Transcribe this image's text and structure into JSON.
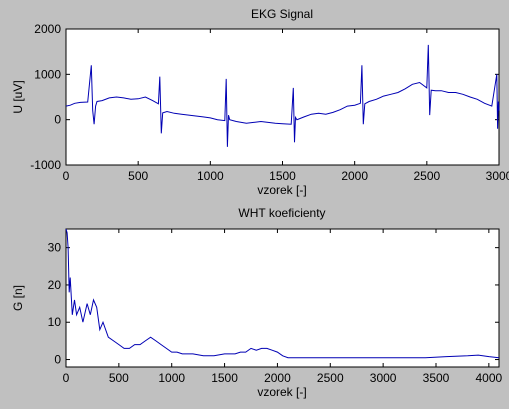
{
  "figure": {
    "background": "#c0c0c0",
    "line_color": "#0000b4"
  },
  "chart_data": [
    {
      "type": "line",
      "title": "EKG Signal",
      "xlabel": "vzorek [-]",
      "ylabel": "U [uV]",
      "xlim": [
        0,
        3000
      ],
      "ylim": [
        -1000,
        2000
      ],
      "xticks": [
        0,
        500,
        1000,
        1500,
        2000,
        2500,
        3000
      ],
      "yticks": [
        -1000,
        0,
        1000,
        2000
      ],
      "grid": false,
      "series": [
        {
          "color": "#0000b4",
          "x": [
            0,
            30,
            60,
            100,
            150,
            175,
            185,
            195,
            205,
            215,
            250,
            300,
            350,
            400,
            450,
            500,
            550,
            600,
            640,
            650,
            660,
            670,
            700,
            750,
            800,
            850,
            900,
            950,
            1000,
            1050,
            1100,
            1110,
            1118,
            1126,
            1134,
            1180,
            1250,
            1300,
            1350,
            1400,
            1450,
            1500,
            1560,
            1575,
            1583,
            1590,
            1600,
            1650,
            1700,
            1750,
            1800,
            1850,
            1900,
            1950,
            2000,
            2040,
            2050,
            2060,
            2070,
            2100,
            2150,
            2200,
            2250,
            2300,
            2350,
            2400,
            2450,
            2500,
            2510,
            2520,
            2530,
            2560,
            2600,
            2650,
            2700,
            2750,
            2800,
            2850,
            2900,
            2950,
            2985,
            2990,
            2996,
            3000
          ],
          "y": [
            300,
            320,
            360,
            380,
            390,
            1200,
            200,
            -100,
            300,
            400,
            420,
            480,
            500,
            480,
            450,
            460,
            500,
            420,
            350,
            950,
            -300,
            150,
            180,
            140,
            120,
            100,
            80,
            60,
            40,
            0,
            -20,
            900,
            -600,
            100,
            0,
            -40,
            -80,
            -60,
            -40,
            -60,
            -80,
            -90,
            -100,
            700,
            -500,
            50,
            0,
            60,
            120,
            140,
            120,
            160,
            220,
            300,
            320,
            360,
            1200,
            -100,
            350,
            400,
            450,
            520,
            560,
            600,
            680,
            780,
            820,
            700,
            1650,
            100,
            650,
            640,
            640,
            600,
            600,
            560,
            500,
            450,
            360,
            300,
            1000,
            -200,
            400,
            200
          ]
        }
      ]
    },
    {
      "type": "line",
      "title": "WHT koeficienty",
      "xlabel": "vzorek [-]",
      "ylabel": "G [n]",
      "xlim": [
        0,
        4096
      ],
      "ylim": [
        -2,
        35
      ],
      "xticks": [
        0,
        500,
        1000,
        1500,
        2000,
        2500,
        3000,
        3500,
        4000
      ],
      "yticks": [
        0,
        10,
        20,
        30
      ],
      "grid": false,
      "series": [
        {
          "color": "#0000b4",
          "x": [
            0,
            10,
            20,
            30,
            40,
            60,
            80,
            100,
            130,
            160,
            200,
            230,
            260,
            290,
            320,
            350,
            400,
            450,
            500,
            550,
            600,
            650,
            700,
            750,
            800,
            850,
            900,
            950,
            1000,
            1050,
            1100,
            1200,
            1300,
            1400,
            1500,
            1600,
            1650,
            1700,
            1750,
            1800,
            1850,
            1900,
            1950,
            2000,
            2050,
            2100,
            2200,
            2400,
            2600,
            2800,
            3000,
            3200,
            3400,
            3600,
            3800,
            3900,
            4000,
            4096
          ],
          "y": [
            35,
            34,
            30,
            18,
            22,
            12,
            16,
            12,
            14,
            10,
            15,
            12,
            16,
            14,
            8,
            10,
            6,
            5,
            4,
            3,
            3,
            4,
            4,
            5,
            6,
            5,
            4,
            3,
            2,
            2,
            1.5,
            1.5,
            1,
            1,
            1.5,
            1.5,
            2,
            2,
            3,
            2.5,
            3,
            3,
            2.5,
            2,
            1,
            0.5,
            0.5,
            0.5,
            0.5,
            0.5,
            0.5,
            0.5,
            0.5,
            0.8,
            1,
            1.2,
            0.8,
            0.5
          ]
        }
      ]
    }
  ]
}
